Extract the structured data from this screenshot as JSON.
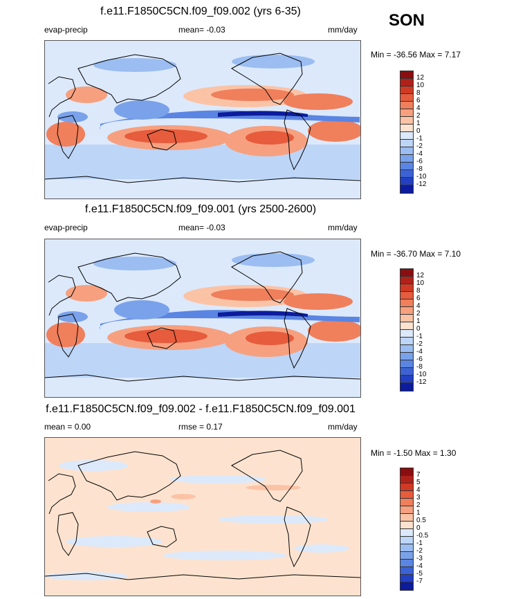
{
  "season": "SON",
  "colors": {
    "warm": [
      "#fde3cf",
      "#fbc3a6",
      "#f7a07f",
      "#f07f5c",
      "#e65c3c",
      "#d03a24",
      "#b0211a",
      "#8a0e10"
    ],
    "cool": [
      "#dce9fb",
      "#bdd5f7",
      "#9bbdf1",
      "#7aa2ea",
      "#5a85e2",
      "#3c63d6",
      "#2340c2",
      "#0c1c9c"
    ],
    "coast": "#000000"
  },
  "panels": [
    {
      "title": "f.e11.F1850C5CN.f09_f09.002 (yrs 6-35)",
      "left_label": "evap-precip",
      "center_label": "mean=  -0.03",
      "units": "mm/day",
      "minmax": "Min = -36.56 Max =   7.17",
      "levels": [
        "12",
        "10",
        "8",
        "6",
        "4",
        "2",
        "1",
        "0",
        "-1",
        "-2",
        "-4",
        "-6",
        "-8",
        "-10",
        "-12"
      ]
    },
    {
      "title": "f.e11.F1850C5CN.f09_f09.001 (yrs 2500-2600)",
      "left_label": "evap-precip",
      "center_label": "mean=  -0.03",
      "units": "mm/day",
      "minmax": "Min = -36.70 Max =   7.10",
      "levels": [
        "12",
        "10",
        "8",
        "6",
        "4",
        "2",
        "1",
        "0",
        "-1",
        "-2",
        "-4",
        "-6",
        "-8",
        "-10",
        "-12"
      ]
    },
    {
      "title": "f.e11.F1850C5CN.f09_f09.002 - f.e11.F1850C5CN.f09_f09.001",
      "left_label": "mean =   0.00",
      "center_label": "rmse =   0.17",
      "units": "mm/day",
      "minmax": "Min =  -1.50 Max =   1.30",
      "levels": [
        "7",
        "5",
        "4",
        "3",
        "2",
        "1",
        "0.5",
        "0",
        "-0.5",
        "-1",
        "-2",
        "-3",
        "-4",
        "-5",
        "-7"
      ]
    }
  ]
}
